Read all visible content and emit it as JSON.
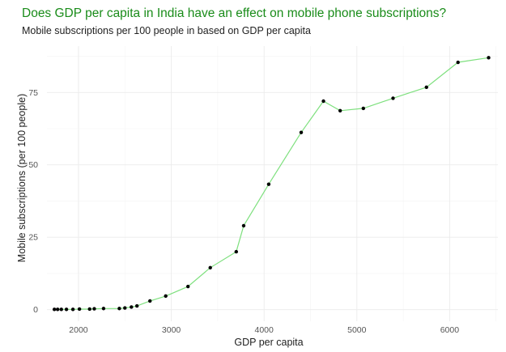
{
  "chart_data": {
    "type": "line",
    "title": "Does GDP per capita in India have an effect on mobile phone subscriptions?",
    "subtitle": "Mobile subscriptions per 100 people in based on GDP per capita",
    "xlabel": "GDP per capita",
    "ylabel": "Mobile subscriptions (per 100 people)",
    "xlim": [
      1660,
      6520
    ],
    "ylim": [
      -4,
      91
    ],
    "xticks": [
      2000,
      3000,
      4000,
      5000,
      6000
    ],
    "yticks": [
      0,
      25,
      50,
      75
    ],
    "grid": true,
    "legend": "none",
    "series": [
      {
        "x": [
          1740,
          1775,
          1815,
          1870,
          1940,
          2010,
          2120,
          2170,
          2270,
          2440,
          2500,
          2570,
          2630,
          2770,
          2940,
          3180,
          3420,
          3700,
          3780,
          4050,
          4400,
          4640,
          4820,
          5070,
          5390,
          5750,
          6090,
          6420
        ],
        "y": [
          0.1,
          0.1,
          0.1,
          0.1,
          0.1,
          0.2,
          0.2,
          0.3,
          0.4,
          0.4,
          0.6,
          0.9,
          1.3,
          3.0,
          4.7,
          8.0,
          14.5,
          20.0,
          29.0,
          43.3,
          61.2,
          72.0,
          68.7,
          69.5,
          73.0,
          76.8,
          85.4,
          87.0
        ]
      }
    ],
    "colors": {
      "line": "#7ee07e",
      "point": "#000000",
      "grid": "#ebebeb"
    }
  }
}
